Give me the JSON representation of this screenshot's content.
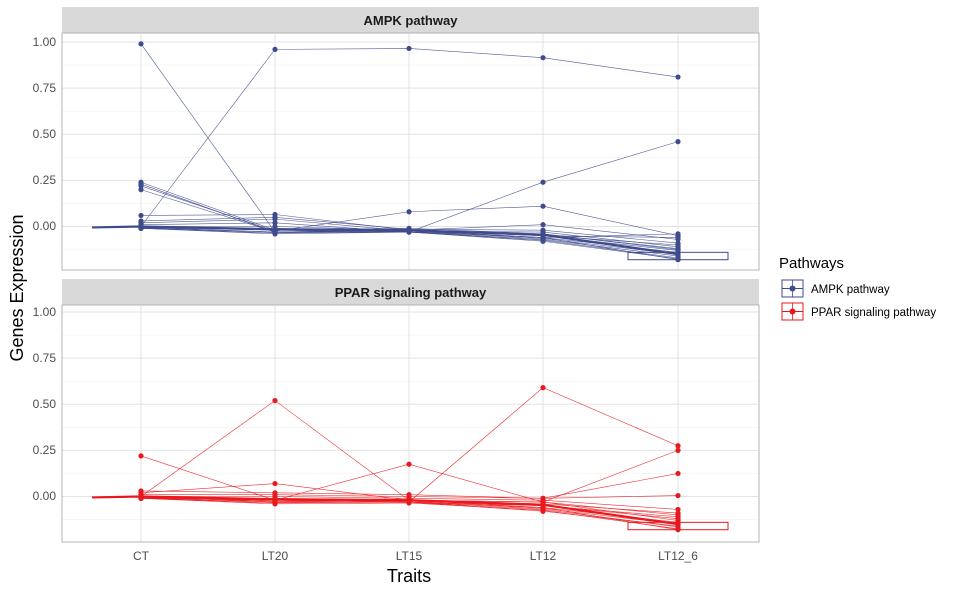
{
  "chart_data": {
    "type": "line",
    "x_label": "Traits",
    "y_label": "Genes Expression",
    "categories": [
      "CT",
      "LT20",
      "LT15",
      "LT12",
      "LT12_6"
    ],
    "y_ticks": [
      0.0,
      0.25,
      0.5,
      0.75,
      1.0
    ],
    "y_tick_labels": [
      "0.00",
      "0.25",
      "0.50",
      "0.75",
      "1.00"
    ],
    "ylim": [
      -0.2,
      1.05
    ],
    "legend": {
      "title": "Pathways",
      "entries": [
        {
          "label": "AMPK pathway",
          "color": "#3f4b8c"
        },
        {
          "label": "PPAR signaling pathway",
          "color": "#e8191e"
        }
      ]
    },
    "panels": [
      {
        "strip": "AMPK pathway",
        "color": "#3f4b8c",
        "series": [
          [
            0.0,
            0.96,
            0.965,
            0.915,
            0.81
          ],
          [
            0.99,
            -0.03,
            -0.02,
            -0.05,
            -0.1
          ],
          [
            0.24,
            -0.02,
            -0.03,
            0.24,
            0.46
          ],
          [
            0.23,
            -0.03,
            -0.025,
            -0.06,
            -0.04
          ],
          [
            0.22,
            -0.025,
            0.08,
            0.11,
            -0.05
          ],
          [
            0.2,
            -0.03,
            -0.02,
            -0.05,
            -0.06
          ],
          [
            0.06,
            0.065,
            -0.02,
            0.01,
            -0.07
          ],
          [
            0.03,
            0.05,
            -0.015,
            -0.02,
            -0.09
          ],
          [
            0.02,
            0.04,
            -0.025,
            -0.03,
            -0.11
          ],
          [
            0.01,
            0.02,
            -0.03,
            -0.04,
            -0.12
          ],
          [
            0.0,
            0.0,
            -0.02,
            -0.05,
            -0.13
          ],
          [
            -0.01,
            -0.01,
            -0.03,
            -0.06,
            -0.14
          ],
          [
            -0.005,
            -0.02,
            -0.025,
            -0.065,
            -0.15
          ],
          [
            -0.01,
            -0.035,
            -0.03,
            -0.07,
            -0.16
          ],
          [
            -0.01,
            -0.04,
            -0.03,
            -0.075,
            -0.17
          ],
          [
            -0.005,
            -0.03,
            -0.02,
            -0.06,
            -0.18
          ],
          [
            0.0,
            -0.02,
            -0.01,
            -0.04,
            -0.125
          ],
          [
            -0.01,
            -0.03,
            -0.03,
            -0.08,
            -0.175
          ]
        ]
      },
      {
        "strip": "PPAR signaling pathway",
        "color": "#e8191e",
        "series": [
          [
            0.0,
            0.52,
            -0.02,
            -0.03,
            -0.1
          ],
          [
            0.22,
            -0.02,
            -0.03,
            -0.05,
            -0.12
          ],
          [
            0.0,
            -0.02,
            0.175,
            -0.03,
            -0.13
          ],
          [
            0.0,
            -0.02,
            -0.03,
            0.59,
            0.275
          ],
          [
            0.02,
            0.07,
            -0.02,
            -0.03,
            0.25
          ],
          [
            0.03,
            0.02,
            0.01,
            -0.01,
            0.125
          ],
          [
            0.01,
            0.01,
            0.0,
            -0.01,
            0.005
          ],
          [
            0.0,
            0.0,
            -0.01,
            -0.02,
            -0.07
          ],
          [
            -0.01,
            -0.01,
            -0.02,
            -0.04,
            -0.09
          ],
          [
            0.0,
            -0.02,
            -0.02,
            -0.05,
            -0.11
          ],
          [
            -0.01,
            -0.03,
            -0.03,
            -0.06,
            -0.14
          ],
          [
            -0.005,
            -0.025,
            -0.025,
            -0.065,
            -0.15
          ],
          [
            -0.01,
            -0.035,
            -0.03,
            -0.07,
            -0.165
          ],
          [
            -0.01,
            -0.04,
            -0.035,
            -0.075,
            -0.175
          ],
          [
            0.0,
            -0.03,
            -0.02,
            -0.06,
            -0.18
          ],
          [
            -0.01,
            -0.02,
            -0.03,
            -0.08,
            -0.16
          ]
        ]
      }
    ]
  }
}
